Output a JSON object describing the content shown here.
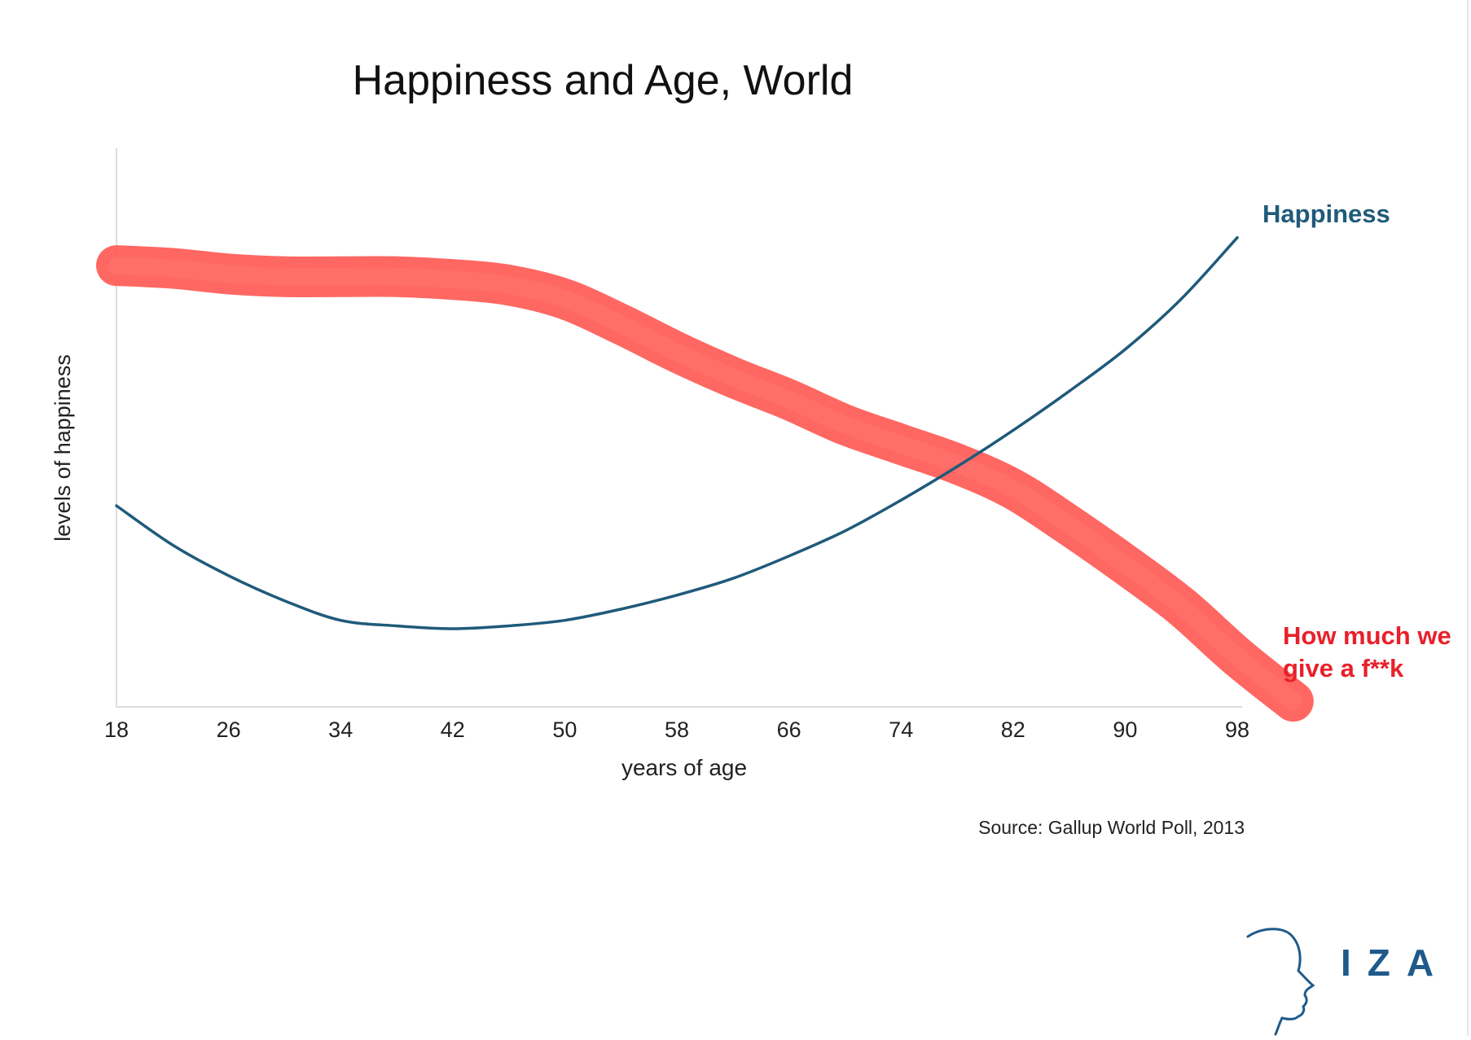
{
  "chart_data": {
    "type": "line",
    "title": "Happiness and Age, World",
    "xlabel": "years of age",
    "ylabel": "levels of happiness",
    "x_ticks": [
      18,
      26,
      34,
      42,
      50,
      58,
      66,
      74,
      82,
      90,
      98
    ],
    "xlim": [
      18,
      98
    ],
    "ylim": [
      0,
      100
    ],
    "y_ticks_shown": false,
    "grid": false,
    "source": "Source: Gallup World Poll, 2013",
    "series": [
      {
        "name": "Happiness",
        "color": "#1f5a7a",
        "style": "thin line",
        "points": [
          [
            18,
            36
          ],
          [
            22,
            29
          ],
          [
            26,
            23.5
          ],
          [
            30,
            19
          ],
          [
            34,
            15.5
          ],
          [
            38,
            14.5
          ],
          [
            42,
            14
          ],
          [
            46,
            14.5
          ],
          [
            50,
            15.5
          ],
          [
            54,
            17.5
          ],
          [
            58,
            20
          ],
          [
            62,
            23
          ],
          [
            66,
            27
          ],
          [
            70,
            31.5
          ],
          [
            74,
            37
          ],
          [
            78,
            43
          ],
          [
            82,
            49.5
          ],
          [
            86,
            56.5
          ],
          [
            90,
            64
          ],
          [
            94,
            73
          ],
          [
            98,
            84
          ]
        ]
      },
      {
        "name": "How much we give a f**k",
        "color": "#ff5a55",
        "style": "thick hand-drawn marker stroke",
        "points": [
          [
            18,
            79
          ],
          [
            22,
            78.5
          ],
          [
            26,
            77.5
          ],
          [
            30,
            77
          ],
          [
            34,
            77
          ],
          [
            38,
            77
          ],
          [
            42,
            76.5
          ],
          [
            46,
            75.5
          ],
          [
            50,
            73
          ],
          [
            54,
            68.5
          ],
          [
            58,
            63.5
          ],
          [
            62,
            59
          ],
          [
            66,
            55
          ],
          [
            70,
            50.5
          ],
          [
            74,
            47
          ],
          [
            78,
            43.5
          ],
          [
            82,
            39
          ],
          [
            86,
            32.5
          ],
          [
            90,
            25.5
          ],
          [
            94,
            18
          ],
          [
            98,
            9
          ],
          [
            102,
            1
          ]
        ]
      }
    ],
    "labels": {
      "happiness": "Happiness",
      "give": [
        "How much we",
        "give a f**k"
      ]
    }
  },
  "logo": {
    "text": "IZA",
    "color": "#1f5a8a"
  }
}
